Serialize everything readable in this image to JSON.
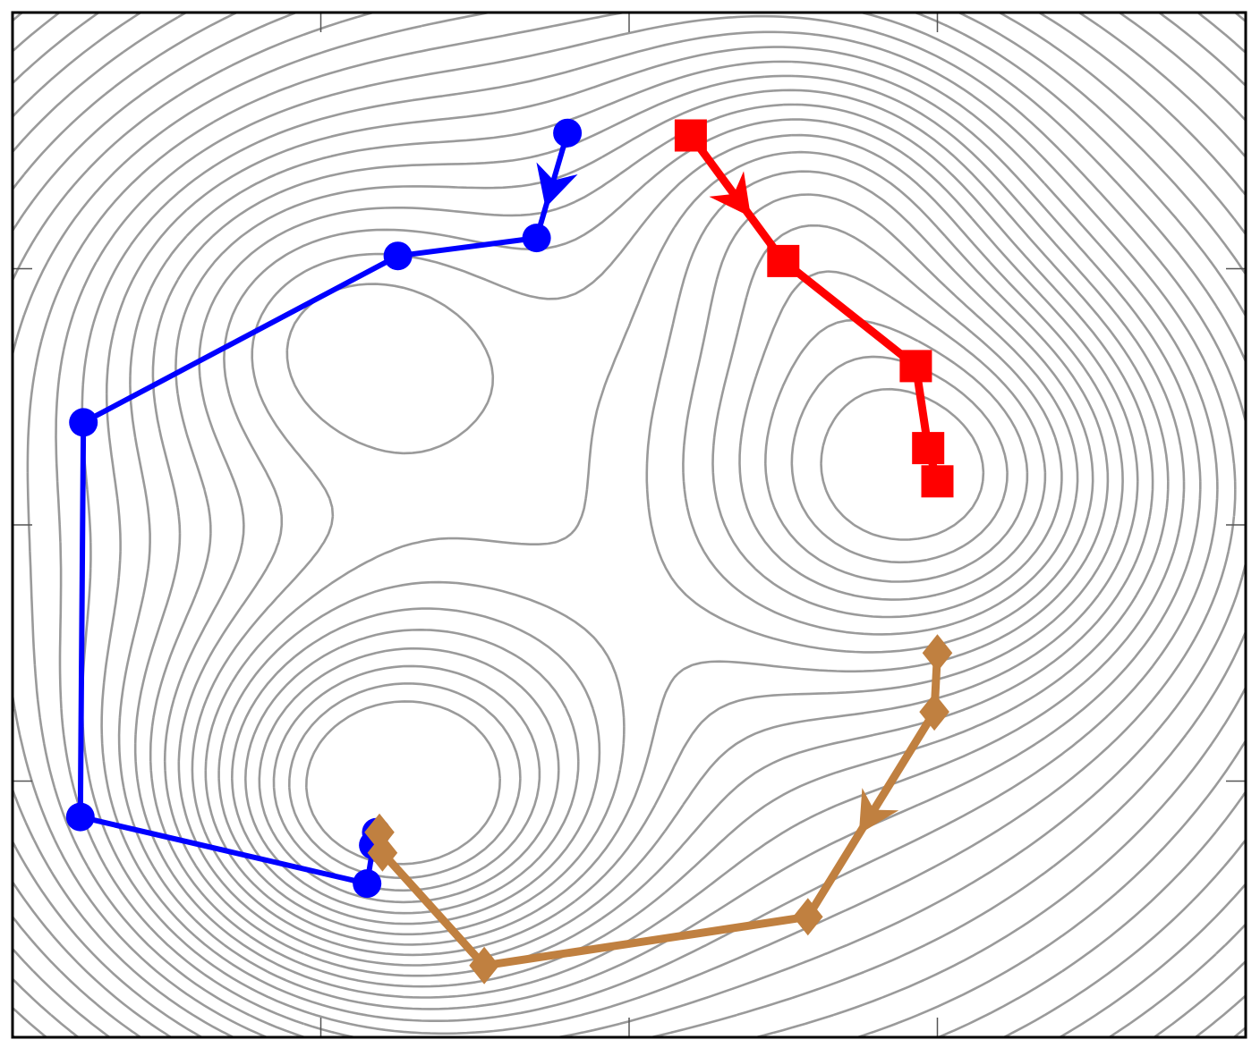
{
  "chart_data": {
    "type": "line",
    "title": "",
    "xlabel": "",
    "ylabel": "",
    "xlim": [
      0,
      4
    ],
    "ylim": [
      0,
      4
    ],
    "grid": false,
    "legend": "none",
    "x_ticks": [
      1,
      2,
      3
    ],
    "y_ticks": [
      1,
      2,
      3
    ],
    "background": "contour",
    "series": [
      {
        "marker": "circle",
        "color": "#0000ff",
        "x": [
          1.8,
          1.7,
          1.25,
          0.23,
          0.22,
          1.15,
          1.17,
          1.18
        ],
        "y": [
          3.53,
          3.12,
          3.05,
          2.4,
          0.86,
          0.6,
          0.75,
          0.8
        ],
        "arrows": [
          0
        ]
      },
      {
        "marker": "square",
        "color": "#ff0000",
        "x": [
          2.2,
          2.5,
          2.93,
          2.97,
          3.0
        ],
        "y": [
          3.52,
          3.03,
          2.62,
          2.3,
          2.17
        ],
        "arrows": [
          0
        ]
      },
      {
        "marker": "diamond",
        "color": "#c08040",
        "x": [
          3.0,
          2.99,
          2.58,
          1.53,
          1.2,
          1.19
        ],
        "y": [
          1.5,
          1.27,
          0.47,
          0.28,
          0.72,
          0.8
        ],
        "arrows": [
          1
        ]
      }
    ]
  }
}
